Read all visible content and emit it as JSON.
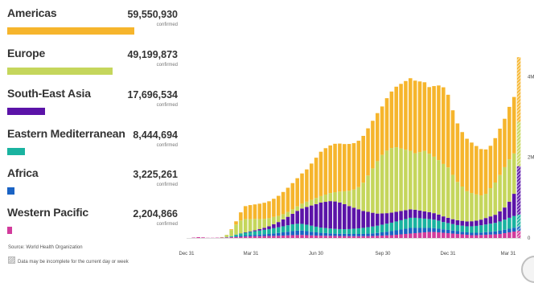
{
  "source": "Source: World Health Organization",
  "note": "Data may be incomplete for the current day or week",
  "regions": [
    {
      "name": "Americas",
      "count": "59,550,930",
      "sub": "confirmed",
      "color": "#f6b52c",
      "value": 59550930
    },
    {
      "name": "Europe",
      "count": "49,199,873",
      "sub": "confirmed",
      "color": "#c5d65c",
      "value": 49199873
    },
    {
      "name": "South-East Asia",
      "count": "17,696,534",
      "sub": "confirmed",
      "color": "#5b13a8",
      "value": 17696534
    },
    {
      "name": "Eastern Mediterranean",
      "count": "8,444,694",
      "sub": "confirmed",
      "color": "#1ab3a0",
      "value": 8444694
    },
    {
      "name": "Africa",
      "count": "3,225,261",
      "sub": "confirmed",
      "color": "#1a63c4",
      "value": 3225261
    },
    {
      "name": "Western Pacific",
      "count": "2,204,866",
      "sub": "confirmed",
      "color": "#d23b9c",
      "value": 2204866
    }
  ],
  "chart_data": {
    "type": "bar",
    "stacked": true,
    "title": "",
    "xlabel": "",
    "ylabel": "",
    "x_ticks": [
      "Dec 31",
      "Mar 31",
      "Jun 30",
      "Sep 30",
      "Dec 31",
      "Mar 31"
    ],
    "y_ticks": [
      "0",
      "2M",
      "4M"
    ],
    "ylim": [
      0,
      5500000
    ],
    "grid": false,
    "incomplete_last_week": true,
    "series": [
      {
        "name": "Western Pacific",
        "color": "#d23b9c",
        "values": [
          0,
          10000,
          20000,
          15000,
          5000,
          5000,
          8000,
          10000,
          15000,
          20000,
          25000,
          30000,
          35000,
          40000,
          42000,
          45000,
          48000,
          50000,
          52000,
          55000,
          60000,
          65000,
          70000,
          72000,
          75000,
          70000,
          65000,
          60000,
          58000,
          56000,
          54000,
          52000,
          50000,
          48000,
          46000,
          45000,
          45000,
          46000,
          48000,
          50000,
          55000,
          60000,
          65000,
          70000,
          80000,
          90000,
          100000,
          110000,
          120000,
          130000,
          140000,
          150000,
          150000,
          140000,
          130000,
          120000,
          110000,
          100000,
          90000,
          80000,
          70000,
          70000,
          75000,
          80000,
          85000,
          90000,
          100000,
          120000,
          140000,
          160000,
          180000
        ]
      },
      {
        "name": "Africa",
        "color": "#1a63c4",
        "values": [
          0,
          0,
          0,
          0,
          0,
          0,
          0,
          0,
          0,
          5000,
          15000,
          20000,
          25000,
          30000,
          35000,
          40000,
          45000,
          50000,
          60000,
          70000,
          80000,
          90000,
          100000,
          110000,
          110000,
          100000,
          90000,
          80000,
          70000,
          65000,
          60000,
          55000,
          55000,
          55000,
          55000,
          55000,
          55000,
          55000,
          60000,
          65000,
          70000,
          80000,
          90000,
          100000,
          110000,
          120000,
          130000,
          140000,
          130000,
          120000,
          110000,
          100000,
          95000,
          90000,
          85000,
          80000,
          75000,
          70000,
          65000,
          60000,
          60000,
          60000,
          60000,
          65000,
          70000,
          75000,
          80000,
          85000,
          90000,
          95000,
          100000
        ]
      },
      {
        "name": "Eastern Mediterranean",
        "color": "#1ab3a0",
        "values": [
          0,
          0,
          0,
          0,
          0,
          0,
          0,
          2000,
          10000,
          20000,
          40000,
          60000,
          70000,
          80000,
          90000,
          100000,
          110000,
          120000,
          130000,
          140000,
          150000,
          160000,
          170000,
          170000,
          165000,
          160000,
          150000,
          140000,
          130000,
          125000,
          120000,
          118000,
          115000,
          115000,
          120000,
          130000,
          140000,
          150000,
          160000,
          170000,
          180000,
          190000,
          200000,
          210000,
          220000,
          230000,
          240000,
          250000,
          250000,
          240000,
          230000,
          220000,
          210000,
          200000,
          180000,
          170000,
          160000,
          150000,
          150000,
          150000,
          160000,
          170000,
          180000,
          190000,
          200000,
          210000,
          230000,
          250000,
          270000,
          290000,
          300000
        ]
      },
      {
        "name": "South-East Asia",
        "color": "#5b13a8",
        "values": [
          0,
          0,
          0,
          0,
          0,
          0,
          0,
          0,
          0,
          1000,
          3000,
          5000,
          10000,
          15000,
          25000,
          35000,
          50000,
          70000,
          100000,
          130000,
          170000,
          210000,
          260000,
          320000,
          380000,
          440000,
          500000,
          560000,
          620000,
          650000,
          680000,
          680000,
          660000,
          620000,
          570000,
          520000,
          470000,
          420000,
          380000,
          340000,
          300000,
          280000,
          260000,
          250000,
          240000,
          230000,
          220000,
          210000,
          200000,
          190000,
          180000,
          170000,
          160000,
          150000,
          140000,
          130000,
          120000,
          120000,
          120000,
          120000,
          125000,
          130000,
          140000,
          160000,
          180000,
          200000,
          250000,
          300000,
          400000,
          550000,
          1200000
        ]
      },
      {
        "name": "Europe",
        "color": "#c5d65c",
        "values": [
          0,
          0,
          0,
          0,
          0,
          0,
          0,
          10000,
          50000,
          150000,
          250000,
          320000,
          330000,
          300000,
          280000,
          250000,
          220000,
          200000,
          180000,
          150000,
          130000,
          120000,
          110000,
          110000,
          120000,
          130000,
          140000,
          150000,
          160000,
          180000,
          200000,
          230000,
          270000,
          320000,
          380000,
          450000,
          550000,
          700000,
          900000,
          1100000,
          1300000,
          1450000,
          1550000,
          1600000,
          1600000,
          1550000,
          1500000,
          1450000,
          1400000,
          1450000,
          1500000,
          1450000,
          1400000,
          1350000,
          1300000,
          1250000,
          1100000,
          950000,
          850000,
          750000,
          700000,
          650000,
          600000,
          600000,
          700000,
          800000,
          900000,
          1000000,
          1050000,
          1000000,
          1100000
        ]
      },
      {
        "name": "Americas",
        "color": "#f6b52c",
        "values": [
          0,
          0,
          0,
          0,
          0,
          0,
          0,
          0,
          2000,
          20000,
          80000,
          200000,
          320000,
          350000,
          360000,
          380000,
          400000,
          420000,
          450000,
          500000,
          550000,
          600000,
          650000,
          700000,
          750000,
          800000,
          900000,
          1000000,
          1100000,
          1150000,
          1180000,
          1200000,
          1190000,
          1170000,
          1160000,
          1150000,
          1150000,
          1160000,
          1170000,
          1180000,
          1190000,
          1200000,
          1300000,
          1400000,
          1500000,
          1600000,
          1700000,
          1800000,
          1800000,
          1750000,
          1700000,
          1650000,
          1750000,
          1850000,
          1900000,
          1800000,
          1600000,
          1450000,
          1350000,
          1300000,
          1250000,
          1200000,
          1150000,
          1100000,
          1050000,
          1100000,
          1150000,
          1200000,
          1300000,
          1400000,
          1600000
        ]
      }
    ]
  }
}
